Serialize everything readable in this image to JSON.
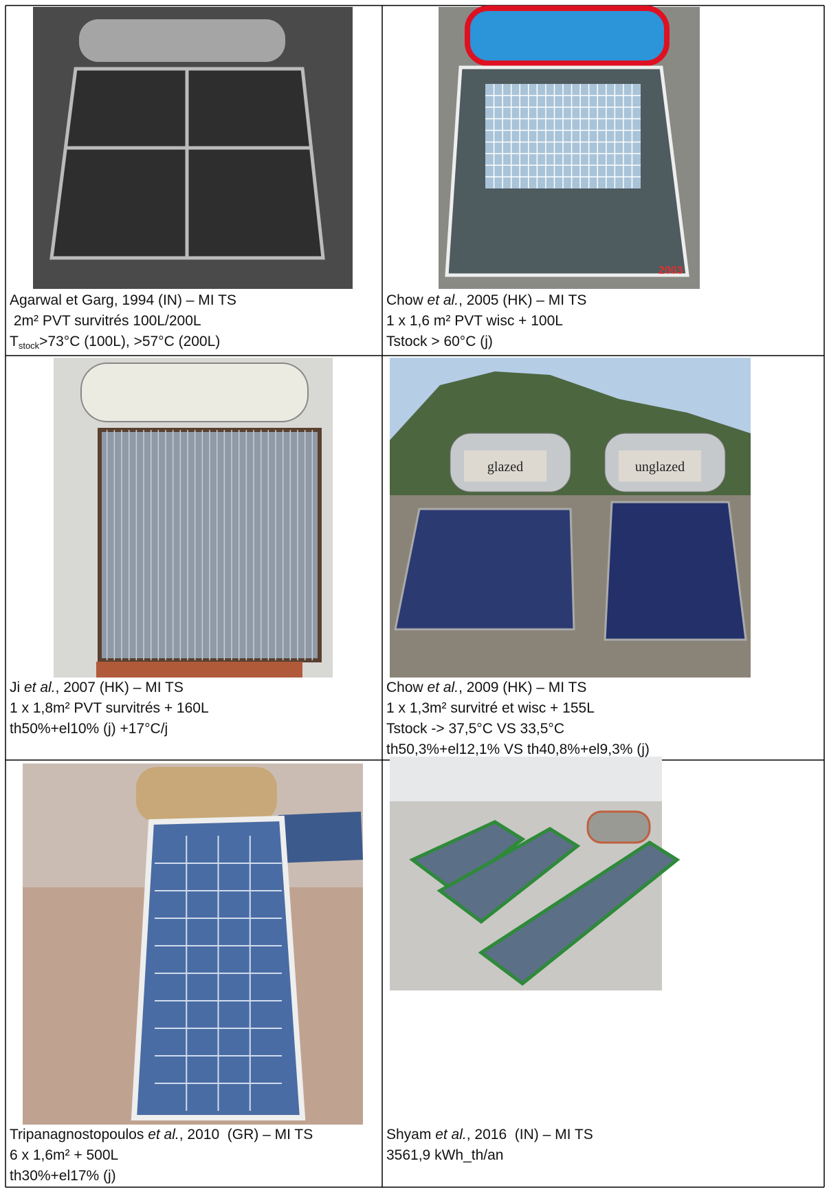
{
  "cells": [
    {
      "photo_text": [],
      "lines": [
        [
          {
            "text": "Agarwal et Garg, 1994 (IN) – MI TS"
          }
        ],
        [
          {
            "text": " 2m² PVT survitrés 100L/200L"
          }
        ],
        [
          {
            "text": "T"
          },
          {
            "text": "stock",
            "style": "sub"
          },
          {
            "text": ">73°C (100L), >57°C (200L)"
          }
        ]
      ]
    },
    {
      "photo_text": [
        "2003"
      ],
      "lines": [
        [
          {
            "text": "Chow "
          },
          {
            "text": "et al.",
            "style": "italic"
          },
          {
            "text": ", 2005 (HK) – MI TS"
          }
        ],
        [
          {
            "text": "1 x 1,6 m² PVT wisc + 100L"
          }
        ],
        [
          {
            "text": "Tstock > 60°C (j)"
          }
        ]
      ]
    },
    {
      "photo_text": [],
      "lines": [
        [
          {
            "text": "Ji "
          },
          {
            "text": "et al.",
            "style": "italic"
          },
          {
            "text": ", 2007 (HK) – MI TS"
          }
        ],
        [
          {
            "text": "1 x 1,8m² PVT survitrés + 160L"
          }
        ],
        [
          {
            "text": "th50%+el10% (j) +17°C/j"
          }
        ]
      ]
    },
    {
      "photo_text": [
        "glazed",
        "unglazed"
      ],
      "lines": [
        [
          {
            "text": "Chow "
          },
          {
            "text": "et al.",
            "style": "italic"
          },
          {
            "text": ", 2009 (HK) – MI TS"
          }
        ],
        [
          {
            "text": "1 x 1,3m² survitré et wisc + 155L"
          }
        ],
        [
          {
            "text": "Tstock -> 37,5°C VS 33,5°C"
          }
        ],
        [
          {
            "text": "th50,3%+el12,1% VS th40,8%+el9,3% (j)"
          }
        ]
      ]
    },
    {
      "photo_text": [],
      "lines": [
        [
          {
            "text": "Tripanagnostopoulos "
          },
          {
            "text": "et al.",
            "style": "italic"
          },
          {
            "text": ", 2010  (GR) – MI TS"
          }
        ],
        [
          {
            "text": "6 x 1,6m² + 500L"
          }
        ],
        [
          {
            "text": "th30%+el17% (j)"
          }
        ]
      ]
    },
    {
      "photo_text": [],
      "lines": [
        [
          {
            "text": "Shyam "
          },
          {
            "text": "et al.",
            "style": "italic"
          },
          {
            "text": ", 2016  (IN) – MI TS"
          }
        ],
        [
          {
            "text": "3561,9 kWh_th/an"
          }
        ]
      ]
    }
  ]
}
